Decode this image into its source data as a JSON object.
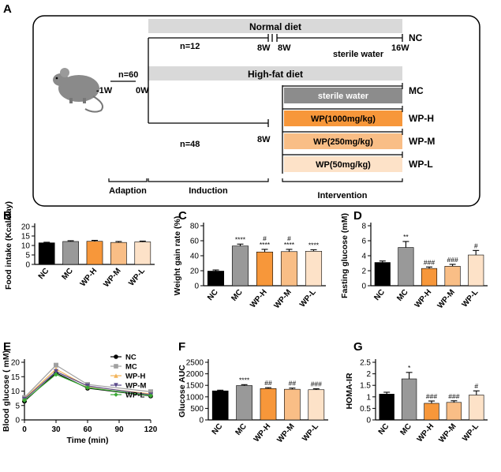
{
  "panels": {
    "A": "A",
    "B": "B",
    "C": "C",
    "D": "D",
    "E": "E",
    "F": "F",
    "G": "G"
  },
  "diagram": {
    "normal_diet": "Normal diet",
    "high_fat_diet": "High-fat diet",
    "n60": "n=60",
    "n12": "n=12",
    "n48": "n=48",
    "minus1w": "-1W",
    "zero_w": "0W",
    "eight_w_top": "8W",
    "eight_w_top2": "8W",
    "sixteen_w": "16W",
    "eight_w_low": "8W",
    "sterile_water_top": "sterile water",
    "nc": "NC",
    "groups": [
      {
        "box": "sterile water",
        "label": "MC",
        "color": "#8c8c8c"
      },
      {
        "box": "WP(1000mg/kg)",
        "label": "WP-H",
        "color": "#f7973a"
      },
      {
        "box": "WP(250mg/kg)",
        "label": "WP-M",
        "color": "#f9be86"
      },
      {
        "box": "WP(50mg/kg)",
        "label": "WP-L",
        "color": "#fde2c8"
      }
    ],
    "phases": [
      "Adaption",
      "Induction",
      "Intervention"
    ]
  },
  "groups": [
    "NC",
    "MC",
    "WP-H",
    "WP-M",
    "WP-L"
  ],
  "bar_colors": [
    "#000000",
    "#999999",
    "#f7973a",
    "#f9be86",
    "#fde2c8"
  ],
  "chart_data": [
    {
      "panel": "B",
      "type": "bar",
      "ylabel": "Food intake (Kcal/day)",
      "categories": [
        "NC",
        "MC",
        "WP-H",
        "WP-M",
        "WP-L"
      ],
      "values": [
        11.4,
        12.1,
        12.2,
        11.6,
        11.9
      ],
      "errors": [
        0.3,
        0.4,
        0.5,
        0.5,
        0.4
      ],
      "annotations": [
        "",
        "",
        "",
        "",
        ""
      ],
      "ylim": [
        0,
        20
      ],
      "yticks": [
        0,
        5,
        10,
        15,
        20
      ]
    },
    {
      "panel": "C",
      "type": "bar",
      "ylabel": "Weight gain rate (%)",
      "categories": [
        "NC",
        "MC",
        "WP-H",
        "WP-M",
        "WP-L"
      ],
      "values": [
        19.5,
        53,
        45,
        45.5,
        46
      ],
      "errors": [
        1.5,
        2.5,
        3.5,
        3,
        2
      ],
      "annotations": [
        "",
        "****",
        "#\n****",
        "#\n****",
        "****"
      ],
      "ylim": [
        0,
        80
      ],
      "yticks": [
        0,
        20,
        40,
        60,
        80
      ]
    },
    {
      "panel": "D",
      "type": "bar",
      "ylabel": "Fasting glucose (mM)",
      "categories": [
        "NC",
        "MC",
        "WP-H",
        "WP-M",
        "WP-L"
      ],
      "values": [
        3.1,
        5.1,
        2.3,
        2.6,
        4.1
      ],
      "errors": [
        0.2,
        0.8,
        0.2,
        0.25,
        0.6
      ],
      "annotations": [
        "",
        "**",
        "###",
        "###",
        "#"
      ],
      "ylim": [
        0,
        8
      ],
      "yticks": [
        0,
        2,
        4,
        6,
        8
      ]
    },
    {
      "panel": "E",
      "type": "line",
      "ylabel": "Blood glucose ( mM)",
      "xlabel": "Time (min)",
      "x": [
        0,
        30,
        60,
        120
      ],
      "xticks": [
        0,
        30,
        60,
        90,
        120
      ],
      "ylim": [
        0,
        20
      ],
      "yticks": [
        0,
        5,
        10,
        15,
        20
      ],
      "series": [
        {
          "name": "NC",
          "values": [
            6.5,
            16.3,
            11,
            8.3
          ],
          "color": "#000000",
          "marker": "circle"
        },
        {
          "name": "MC",
          "values": [
            7.8,
            19,
            12.3,
            9.8
          ],
          "color": "#a0a0a0",
          "marker": "square"
        },
        {
          "name": "WP-H",
          "values": [
            7.4,
            17.6,
            11.6,
            9
          ],
          "color": "#f2b45a",
          "marker": "triangle"
        },
        {
          "name": "WP-M",
          "values": [
            7.2,
            16.8,
            11.8,
            8.7
          ],
          "color": "#5a4a8a",
          "marker": "triangle-down"
        },
        {
          "name": "WP-L",
          "values": [
            6.8,
            15.8,
            11.2,
            8.4
          ],
          "color": "#3aaa35",
          "marker": "diamond"
        }
      ]
    },
    {
      "panel": "F",
      "type": "bar",
      "ylabel": "Glucose AUC",
      "categories": [
        "NC",
        "MC",
        "WP-H",
        "WP-M",
        "WP-L"
      ],
      "values": [
        1260,
        1490,
        1360,
        1330,
        1310
      ],
      "errors": [
        30,
        40,
        40,
        50,
        40
      ],
      "annotations": [
        "",
        "****",
        "##",
        "##",
        "###"
      ],
      "ylim": [
        0,
        2500
      ],
      "yticks": [
        0,
        500,
        1000,
        1500,
        2000,
        2500
      ]
    },
    {
      "panel": "G",
      "type": "bar",
      "ylabel": "HOMA-IR",
      "categories": [
        "NC",
        "MC",
        "WP-H",
        "WP-M",
        "WP-L"
      ],
      "values": [
        1.12,
        1.78,
        0.72,
        0.76,
        1.08
      ],
      "errors": [
        0.08,
        0.28,
        0.1,
        0.07,
        0.18
      ],
      "annotations": [
        "",
        "*",
        "###",
        "###",
        "#"
      ],
      "ylim": [
        0,
        2.5
      ],
      "yticks": [
        0,
        0.5,
        1.0,
        1.5,
        2.0,
        2.5
      ]
    }
  ]
}
